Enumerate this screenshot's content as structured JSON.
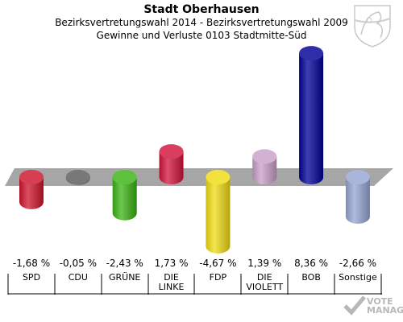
{
  "header": {
    "title": "Stadt Oberhausen",
    "subtitle": "Bezirksvertretungswahl 2014 - Bezirksvertretungswahl 2009",
    "subtitle2": "Gewinne und Verluste 0103 Stadtmitte-Süd"
  },
  "logo": {
    "line1": "VOTE",
    "line2": "MANAGER"
  },
  "chart_data": {
    "type": "bar",
    "title": "Stadt Oberhausen",
    "categories": [
      "SPD",
      "CDU",
      "GRÜNE",
      "DIE LINKE",
      "FDP",
      "DIE VIOLETT",
      "BOB",
      "Sonstige"
    ],
    "category_lines": [
      [
        "SPD"
      ],
      [
        "CDU"
      ],
      [
        "GRÜNE"
      ],
      [
        "DIE",
        "LINKE"
      ],
      [
        "FDP"
      ],
      [
        "DIE",
        "VIOLETT"
      ],
      [
        "BOB"
      ],
      [
        "Sonstige"
      ]
    ],
    "values": [
      -1.68,
      -0.05,
      -2.43,
      1.73,
      -4.67,
      1.39,
      8.36,
      -2.66
    ],
    "value_labels": [
      "-1,68 %",
      "-0,05 %",
      "-2,43 %",
      "1,73 %",
      "-4,67 %",
      "1,39 %",
      "8,36 %",
      "-2,66 %"
    ],
    "colors": [
      "#d0142c",
      "#5a5a5a",
      "#3cb414",
      "#d2143c",
      "#f0dc14",
      "#c8a0c8",
      "#000096",
      "#96a5d2"
    ],
    "baseline": 0
  }
}
